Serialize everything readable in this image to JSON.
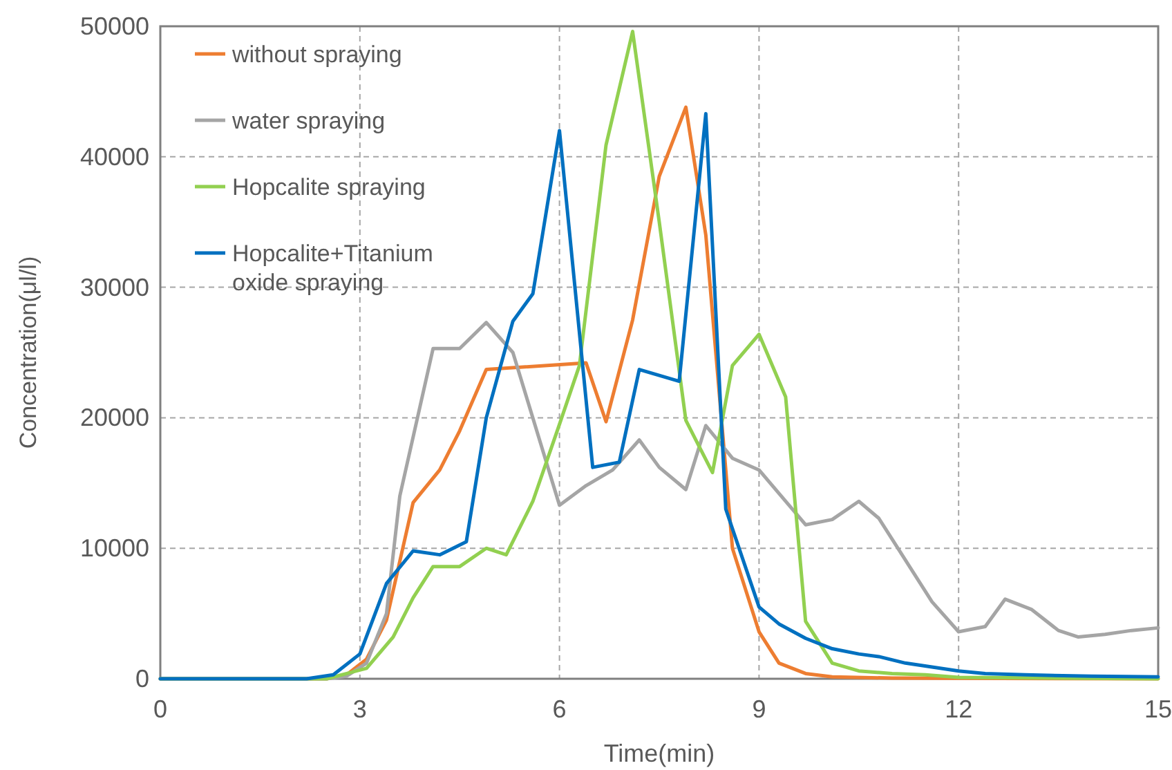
{
  "chart_data": {
    "type": "line",
    "xlabel": "Time(min)",
    "ylabel": "Concentration(μl/l)",
    "xlim": [
      0,
      15
    ],
    "xticks": [
      0,
      3,
      6,
      9,
      12,
      15
    ],
    "ylim": [
      0,
      50000
    ],
    "yticks": [
      0,
      10000,
      20000,
      30000,
      40000,
      50000
    ],
    "grid": true,
    "legend": "top left",
    "marker": "none",
    "line_style": "solid",
    "series": [
      {
        "name": "without spraying",
        "color": "#ed7d31",
        "x": [
          0,
          2.5,
          2.8,
          3.1,
          3.4,
          3.8,
          4.2,
          4.5,
          4.9,
          6.4,
          6.7,
          7.1,
          7.5,
          7.9,
          8.2,
          8.6,
          9.0,
          9.3,
          9.7,
          10.1,
          11,
          15
        ],
        "values": [
          0,
          0,
          300,
          1500,
          4500,
          13500,
          16000,
          19000,
          23700,
          24200,
          19700,
          27500,
          38500,
          43800,
          34000,
          10000,
          3600,
          1200,
          400,
          150,
          50,
          0
        ]
      },
      {
        "name": "water spraying",
        "color": "#a5a5a5",
        "x": [
          0,
          2.5,
          2.8,
          3.1,
          3.4,
          3.6,
          4.1,
          4.5,
          4.9,
          5.3,
          6.0,
          6.4,
          6.8,
          7.2,
          7.5,
          7.9,
          8.2,
          8.6,
          9.0,
          9.3,
          9.7,
          10.1,
          10.5,
          10.8,
          11.6,
          12.0,
          12.4,
          12.7,
          13.1,
          13.5,
          13.8,
          14.2,
          14.6,
          15
        ],
        "values": [
          0,
          0,
          200,
          1200,
          5000,
          14000,
          25300,
          25300,
          27300,
          25000,
          13300,
          14800,
          16000,
          18300,
          16200,
          14500,
          19400,
          16900,
          16000,
          14200,
          11800,
          12200,
          13600,
          12300,
          5900,
          3600,
          4000,
          6100,
          5300,
          3700,
          3200,
          3400,
          3700,
          3900
        ]
      },
      {
        "name": "Hopcalite spraying",
        "color": "#92d050",
        "x": [
          0,
          2.5,
          3.1,
          3.5,
          3.8,
          4.1,
          4.5,
          4.9,
          5.2,
          5.6,
          6.0,
          6.3,
          6.7,
          7.1,
          7.5,
          7.9,
          8.3,
          8.6,
          9.0,
          9.4,
          9.7,
          10.1,
          10.5,
          11,
          11.5,
          12,
          15
        ],
        "values": [
          0,
          0,
          800,
          3200,
          6200,
          8600,
          8600,
          10000,
          9500,
          13600,
          19500,
          24000,
          40900,
          49600,
          35000,
          19800,
          15800,
          24000,
          26400,
          21600,
          4400,
          1200,
          600,
          400,
          300,
          100,
          0
        ]
      },
      {
        "name": "Hopcalite+Titanium oxide spraying",
        "color": "#0070c0",
        "x": [
          0,
          2.2,
          2.6,
          3.0,
          3.4,
          3.8,
          4.2,
          4.6,
          4.9,
          5.3,
          5.6,
          6.0,
          6.5,
          6.9,
          7.2,
          7.8,
          8.2,
          8.5,
          9.0,
          9.3,
          9.7,
          10.1,
          10.5,
          10.8,
          11.2,
          11.6,
          12,
          12.4,
          13,
          14,
          15
        ],
        "values": [
          0,
          0,
          300,
          1900,
          7300,
          9800,
          9500,
          10500,
          20000,
          27400,
          29500,
          42000,
          16200,
          16600,
          23700,
          22800,
          43300,
          13000,
          5500,
          4200,
          3100,
          2300,
          1900,
          1700,
          1200,
          900,
          600,
          400,
          300,
          200,
          150
        ]
      }
    ]
  }
}
